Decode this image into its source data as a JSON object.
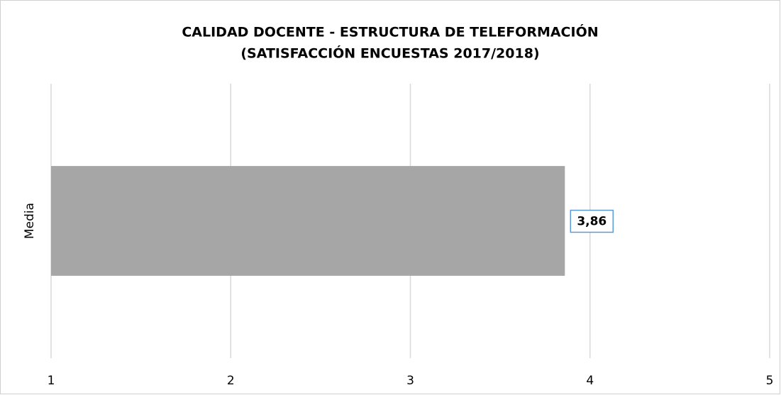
{
  "chart_data": {
    "type": "bar",
    "orientation": "horizontal",
    "title": [
      "CALIDAD DOCENTE - ESTRUCTURA DE TELEFORMACIÓN",
      "(SATISFACCIÓN ENCUESTAS 2017/2018)"
    ],
    "categories": [
      "Media"
    ],
    "values": [
      3.86
    ],
    "value_labels": [
      "3,86"
    ],
    "color": "#a6a6a6",
    "xlim": [
      1,
      5
    ],
    "xticks": [
      1,
      2,
      3,
      4,
      5
    ],
    "grid": true
  }
}
